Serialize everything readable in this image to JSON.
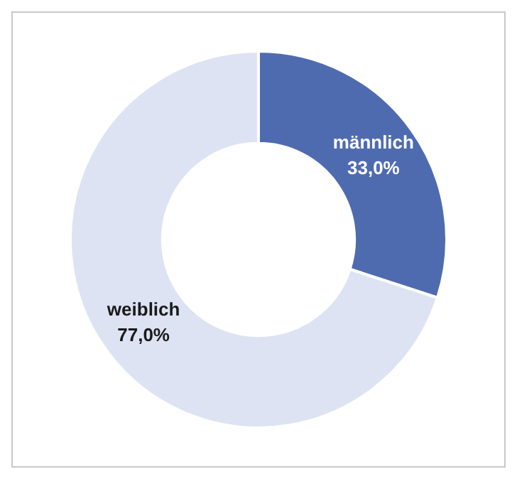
{
  "chart_data": {
    "type": "donut",
    "categories": [
      "männlich",
      "weiblich"
    ],
    "values": [
      33,
      77
    ],
    "colors": [
      "#4f6bb0",
      "#dde3f3"
    ],
    "value_labels": [
      "33,0%",
      "77,0%"
    ],
    "legend": false
  }
}
